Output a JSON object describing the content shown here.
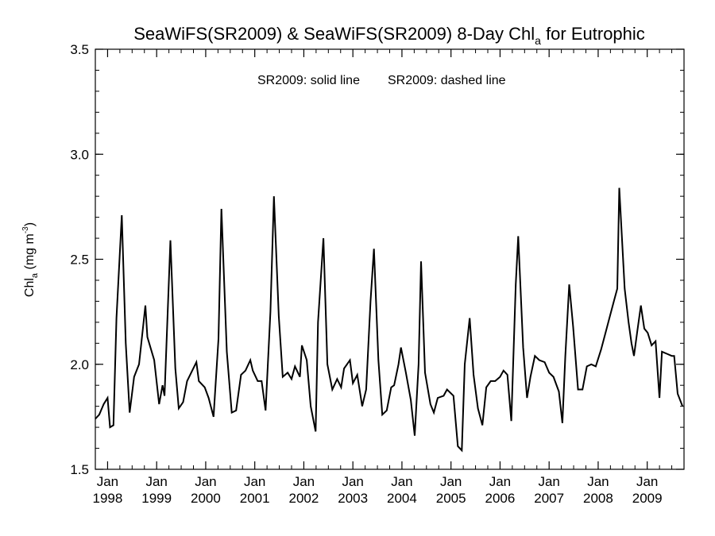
{
  "chart_data": {
    "type": "line",
    "title": {
      "prefix": "SeaWiFS(SR2009) & SeaWiFS(SR2009) 8-Day Chl",
      "subscript": "a",
      "suffix": " for Eutrophic"
    },
    "annotation": {
      "solid": "SR2009: solid line",
      "dashed": "SR2009: dashed line"
    },
    "ylabel": {
      "prefix": "Chl",
      "subscript": "a",
      "middle": " (mg m",
      "superscript": "-3",
      "suffix": ")"
    },
    "ylim": [
      1.5,
      3.5
    ],
    "yticks": [
      {
        "value": 1.5,
        "label": "1.5"
      },
      {
        "value": 2.0,
        "label": "2.0"
      },
      {
        "value": 2.5,
        "label": "2.5"
      },
      {
        "value": 3.0,
        "label": "3.0"
      },
      {
        "value": 3.5,
        "label": "3.5"
      }
    ],
    "xlim": [
      1997.75,
      2009.75
    ],
    "xticks": [
      {
        "value": 1998.0,
        "month": "Jan",
        "year": "1998"
      },
      {
        "value": 1999.0,
        "month": "Jan",
        "year": "1999"
      },
      {
        "value": 2000.0,
        "month": "Jan",
        "year": "2000"
      },
      {
        "value": 2001.0,
        "month": "Jan",
        "year": "2001"
      },
      {
        "value": 2002.0,
        "month": "Jan",
        "year": "2002"
      },
      {
        "value": 2003.0,
        "month": "Jan",
        "year": "2003"
      },
      {
        "value": 2004.0,
        "month": "Jan",
        "year": "2004"
      },
      {
        "value": 2005.0,
        "month": "Jan",
        "year": "2005"
      },
      {
        "value": 2006.0,
        "month": "Jan",
        "year": "2006"
      },
      {
        "value": 2007.0,
        "month": "Jan",
        "year": "2007"
      },
      {
        "value": 2008.0,
        "month": "Jan",
        "year": "2008"
      },
      {
        "value": 2009.0,
        "month": "Jan",
        "year": "2009"
      }
    ],
    "grid": false,
    "series": [
      {
        "line_style": "solid",
        "color": "#000000",
        "points": [
          [
            1997.75,
            1.74
          ],
          [
            1997.83,
            1.76
          ],
          [
            1997.92,
            1.81
          ],
          [
            1998.0,
            1.84
          ],
          [
            1998.05,
            1.7
          ],
          [
            1998.12,
            1.71
          ],
          [
            1998.18,
            2.22
          ],
          [
            1998.29,
            2.71
          ],
          [
            1998.37,
            2.1
          ],
          [
            1998.45,
            1.77
          ],
          [
            1998.54,
            1.94
          ],
          [
            1998.64,
            2.0
          ],
          [
            1998.77,
            2.28
          ],
          [
            1998.81,
            2.13
          ],
          [
            1998.95,
            2.02
          ],
          [
            1999.05,
            1.81
          ],
          [
            1999.12,
            1.9
          ],
          [
            1999.16,
            1.85
          ],
          [
            1999.28,
            2.59
          ],
          [
            1999.38,
            1.98
          ],
          [
            1999.45,
            1.79
          ],
          [
            1999.54,
            1.82
          ],
          [
            1999.62,
            1.92
          ],
          [
            1999.81,
            2.01
          ],
          [
            1999.86,
            1.92
          ],
          [
            1999.98,
            1.89
          ],
          [
            2000.06,
            1.84
          ],
          [
            2000.16,
            1.75
          ],
          [
            2000.26,
            2.12
          ],
          [
            2000.32,
            2.74
          ],
          [
            2000.43,
            2.06
          ],
          [
            2000.53,
            1.77
          ],
          [
            2000.62,
            1.78
          ],
          [
            2000.72,
            1.95
          ],
          [
            2000.81,
            1.97
          ],
          [
            2000.91,
            2.02
          ],
          [
            2000.96,
            1.97
          ],
          [
            2001.06,
            1.92
          ],
          [
            2001.14,
            1.92
          ],
          [
            2001.22,
            1.78
          ],
          [
            2001.32,
            2.25
          ],
          [
            2001.39,
            2.8
          ],
          [
            2001.49,
            2.23
          ],
          [
            2001.57,
            1.94
          ],
          [
            2001.67,
            1.96
          ],
          [
            2001.75,
            1.93
          ],
          [
            2001.82,
            1.99
          ],
          [
            2001.92,
            1.94
          ],
          [
            2001.96,
            2.09
          ],
          [
            2002.06,
            2.02
          ],
          [
            2002.14,
            1.8
          ],
          [
            2002.24,
            1.68
          ],
          [
            2002.29,
            2.2
          ],
          [
            2002.4,
            2.6
          ],
          [
            2002.48,
            2.0
          ],
          [
            2002.58,
            1.88
          ],
          [
            2002.68,
            1.93
          ],
          [
            2002.76,
            1.89
          ],
          [
            2002.82,
            1.98
          ],
          [
            2002.94,
            2.02
          ],
          [
            2003.0,
            1.91
          ],
          [
            2003.09,
            1.95
          ],
          [
            2003.19,
            1.8
          ],
          [
            2003.27,
            1.88
          ],
          [
            2003.36,
            2.3
          ],
          [
            2003.43,
            2.55
          ],
          [
            2003.52,
            2.02
          ],
          [
            2003.6,
            1.76
          ],
          [
            2003.69,
            1.78
          ],
          [
            2003.78,
            1.89
          ],
          [
            2003.84,
            1.9
          ],
          [
            2003.93,
            2.0
          ],
          [
            2003.98,
            2.08
          ],
          [
            2004.08,
            1.96
          ],
          [
            2004.18,
            1.83
          ],
          [
            2004.26,
            1.66
          ],
          [
            2004.34,
            2.0
          ],
          [
            2004.39,
            2.49
          ],
          [
            2004.47,
            1.96
          ],
          [
            2004.58,
            1.81
          ],
          [
            2004.65,
            1.77
          ],
          [
            2004.73,
            1.84
          ],
          [
            2004.85,
            1.85
          ],
          [
            2004.92,
            1.88
          ],
          [
            2005.05,
            1.85
          ],
          [
            2005.14,
            1.61
          ],
          [
            2005.22,
            1.59
          ],
          [
            2005.28,
            2.0
          ],
          [
            2005.38,
            2.22
          ],
          [
            2005.46,
            1.95
          ],
          [
            2005.55,
            1.79
          ],
          [
            2005.64,
            1.71
          ],
          [
            2005.72,
            1.89
          ],
          [
            2005.81,
            1.92
          ],
          [
            2005.9,
            1.92
          ],
          [
            2006.0,
            1.94
          ],
          [
            2006.07,
            1.97
          ],
          [
            2006.15,
            1.95
          ],
          [
            2006.23,
            1.73
          ],
          [
            2006.32,
            2.38
          ],
          [
            2006.37,
            2.61
          ],
          [
            2006.47,
            2.08
          ],
          [
            2006.55,
            1.84
          ],
          [
            2006.62,
            1.94
          ],
          [
            2006.71,
            2.04
          ],
          [
            2006.8,
            2.02
          ],
          [
            2006.91,
            2.01
          ],
          [
            2007.0,
            1.96
          ],
          [
            2007.09,
            1.94
          ],
          [
            2007.2,
            1.87
          ],
          [
            2007.27,
            1.72
          ],
          [
            2007.33,
            2.04
          ],
          [
            2007.41,
            2.38
          ],
          [
            2007.49,
            2.18
          ],
          [
            2007.59,
            1.88
          ],
          [
            2007.68,
            1.88
          ],
          [
            2007.77,
            1.99
          ],
          [
            2007.86,
            2.0
          ],
          [
            2007.95,
            1.99
          ],
          [
            2008.06,
            2.07
          ],
          [
            2008.15,
            2.15
          ],
          [
            2008.24,
            2.23
          ],
          [
            2008.32,
            2.3
          ],
          [
            2008.39,
            2.36
          ],
          [
            2008.43,
            2.84
          ],
          [
            2008.54,
            2.36
          ],
          [
            2008.62,
            2.2
          ],
          [
            2008.68,
            2.1
          ],
          [
            2008.73,
            2.04
          ],
          [
            2008.8,
            2.16
          ],
          [
            2008.87,
            2.28
          ],
          [
            2008.94,
            2.17
          ],
          [
            2009.01,
            2.15
          ],
          [
            2009.09,
            2.09
          ],
          [
            2009.17,
            2.11
          ],
          [
            2009.25,
            1.84
          ],
          [
            2009.3,
            2.06
          ],
          [
            2009.4,
            2.05
          ],
          [
            2009.5,
            2.04
          ],
          [
            2009.55,
            2.04
          ],
          [
            2009.62,
            1.86
          ],
          [
            2009.72,
            1.8
          ]
        ]
      }
    ]
  }
}
